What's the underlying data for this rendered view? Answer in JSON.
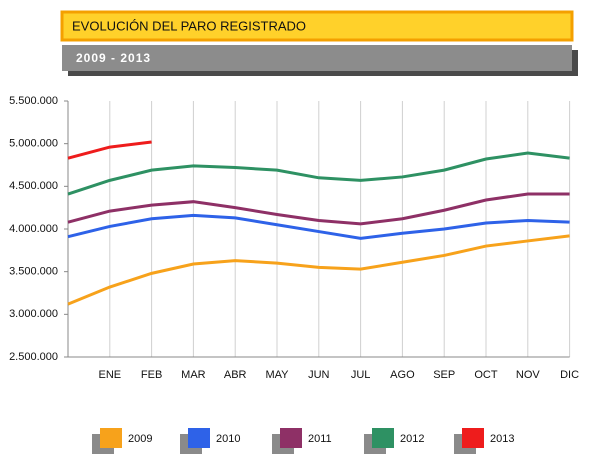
{
  "chart_data": {
    "type": "line",
    "title": "EVOLUCIÓN DEL PARO REGISTRADO",
    "subtitle": "2009 - 2013",
    "categories": [
      null,
      "ENE",
      "FEB",
      "MAR",
      "ABR",
      "MAY",
      "JUN",
      "JUL",
      "AGO",
      "SEP",
      "OCT",
      "NOV",
      "DIC"
    ],
    "series": [
      {
        "name": "2009",
        "color": "#f7a21b",
        "values": [
          3120000,
          3320000,
          3480000,
          3590000,
          3630000,
          3600000,
          3550000,
          3530000,
          3610000,
          3690000,
          3800000,
          3860000,
          3920000
        ]
      },
      {
        "name": "2010",
        "color": "#2e62e8",
        "values": [
          3910000,
          4030000,
          4120000,
          4160000,
          4130000,
          4050000,
          3970000,
          3890000,
          3950000,
          4000000,
          4070000,
          4100000,
          4080000
        ]
      },
      {
        "name": "2011",
        "color": "#8e3066",
        "values": [
          4080000,
          4210000,
          4280000,
          4320000,
          4250000,
          4170000,
          4100000,
          4060000,
          4120000,
          4220000,
          4340000,
          4410000,
          4410000
        ]
      },
      {
        "name": "2012",
        "color": "#2e9163",
        "values": [
          4410000,
          4570000,
          4690000,
          4740000,
          4720000,
          4690000,
          4600000,
          4570000,
          4610000,
          4690000,
          4820000,
          4890000,
          4830000
        ]
      },
      {
        "name": "2013",
        "color": "#ee1c1c",
        "values": [
          4830000,
          4960000,
          5020000,
          null,
          null,
          null,
          null,
          null,
          null,
          null,
          null,
          null,
          null
        ]
      }
    ],
    "ylim": [
      2500000,
      5500000
    ],
    "yticks": [
      {
        "value": 2500000,
        "label": "2.500.000"
      },
      {
        "value": 3000000,
        "label": "3.000.000"
      },
      {
        "value": 3500000,
        "label": "3.500.000"
      },
      {
        "value": 4000000,
        "label": "4.000.000"
      },
      {
        "value": 4500000,
        "label": "4.500.000"
      },
      {
        "value": 5000000,
        "label": "5.000.000"
      },
      {
        "value": 5500000,
        "label": "5.500.000"
      }
    ],
    "grid": "x",
    "legend": "bottom"
  }
}
